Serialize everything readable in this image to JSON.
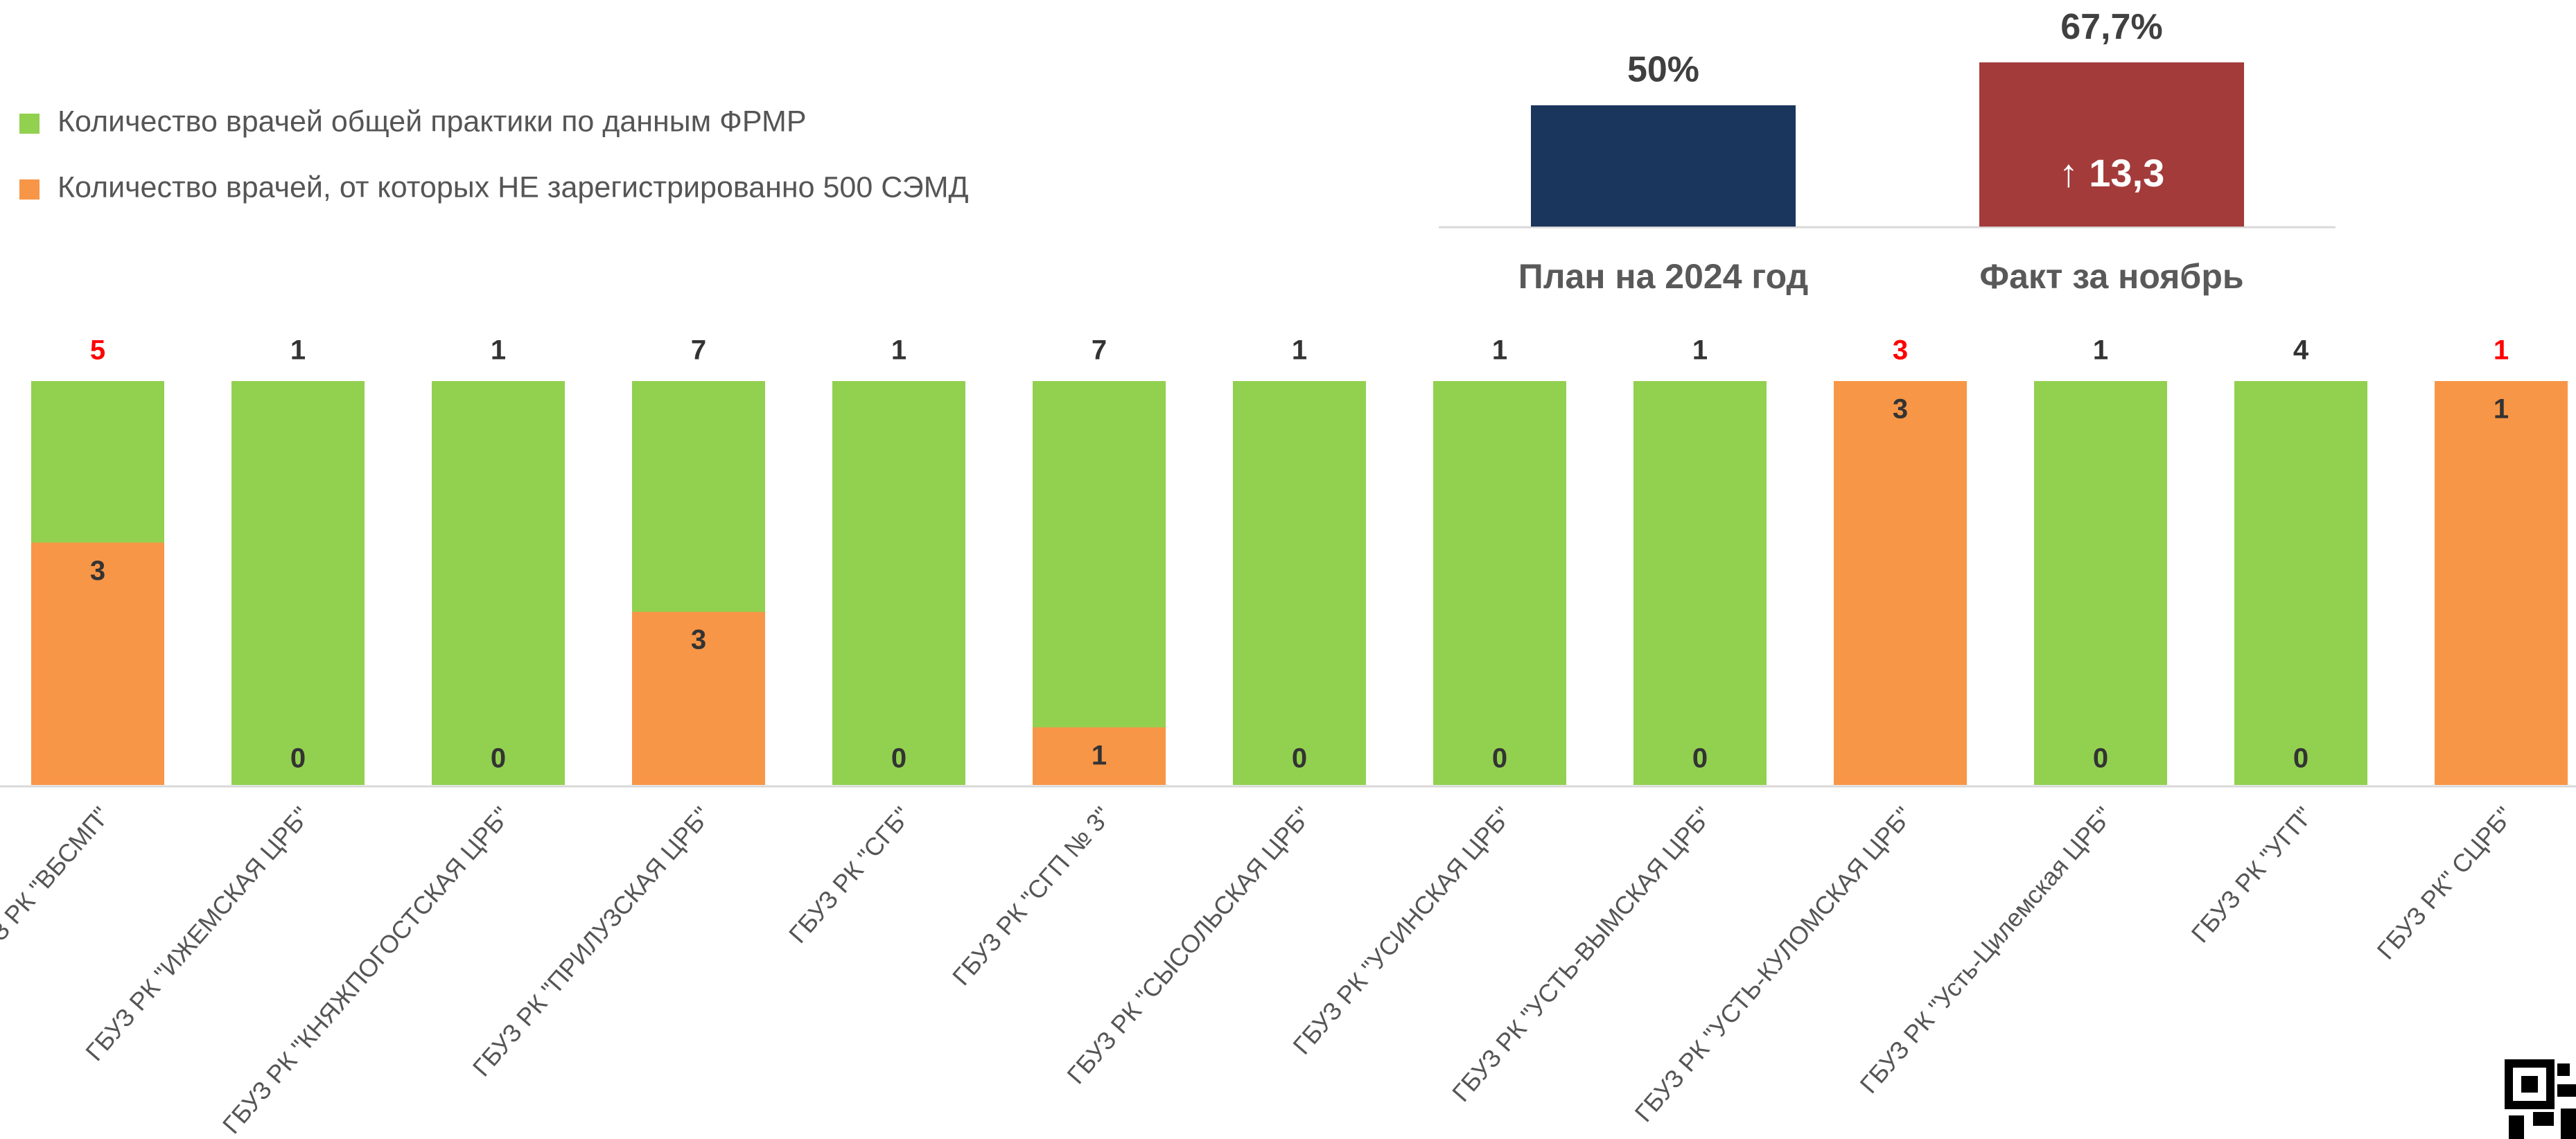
{
  "chart_data": [
    {
      "type": "bar",
      "overlap": true,
      "normalize": true,
      "legend": "top-left",
      "categories": [
        "ГБУЗ РК \"ВБСМП\"",
        "ГБУЗ РК \"ИЖЕМСКАЯ ЦРБ\"",
        "ГБУЗ РК \"КНЯЖПОГОСТСКАЯ ЦРБ\"",
        "ГБУЗ РК \"ПРИЛУЗСКАЯ ЦРБ\"",
        "ГБУЗ РК \"СГБ\"",
        "ГБУЗ РК \"СГП № 3\"",
        "ГБУЗ РК \"СЫСОЛЬСКАЯ ЦРБ\"",
        "ГБУЗ РК \"УСИНСКАЯ ЦРБ\"",
        "ГБУЗ РК \"УСТЬ-ВЫМСКАЯ ЦРБ\"",
        "ГБУЗ РК \"УСТЬ-КУЛОМСКАЯ ЦРБ\"",
        "ГБУЗ РК \"Усть-Цилемская ЦРБ\"",
        "ГБУЗ РК \"УГП\"",
        "ГБУЗ РК\" СЦРБ\""
      ],
      "series": [
        {
          "name": "Количество врачей общей практики по данным ФРМР",
          "color": "#92d050",
          "values": [
            5,
            1,
            1,
            7,
            1,
            7,
            1,
            1,
            1,
            3,
            1,
            4,
            1
          ],
          "label_colors": [
            "#ff0000",
            "#333333",
            "#333333",
            "#333333",
            "#333333",
            "#333333",
            "#333333",
            "#333333",
            "#333333",
            "#ff0000",
            "#333333",
            "#333333",
            "#ff0000"
          ]
        },
        {
          "name": "Количество врачей, от которых НЕ зарегистрированно 500 СЭМД",
          "color": "#f79646",
          "values": [
            3,
            0,
            0,
            3,
            0,
            1,
            0,
            0,
            0,
            3,
            0,
            0,
            1
          ]
        }
      ]
    },
    {
      "type": "bar",
      "categories": [
        "План на 2024 год",
        "Факт за ноябрь"
      ],
      "values": [
        50,
        67.7
      ],
      "value_labels": [
        "50%",
        "67,7%"
      ],
      "colors": [
        "#1b365d",
        "#a33b3a"
      ],
      "ylim": [
        0,
        70
      ],
      "annotation": "↑ 13,3"
    }
  ]
}
